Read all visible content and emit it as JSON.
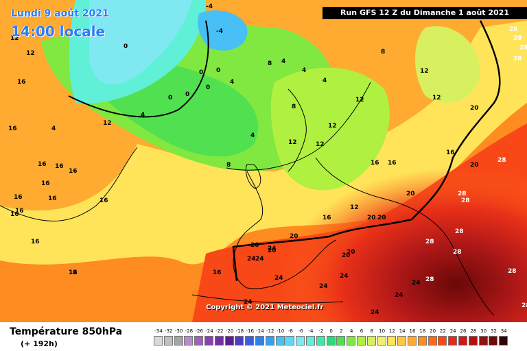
{
  "header": {
    "date": "Lundi 9 août 2021",
    "time": "14:00 locale",
    "run": "Run GFS 12 Z du Dimanche 1 août 2021"
  },
  "footer": {
    "title": "Température 850hPa",
    "lead": "(+ 192h)",
    "copyright": "Copyright © 2021 Meteociel.fr"
  },
  "scale": {
    "labels": [
      "-34",
      "-32",
      "-30",
      "-28",
      "-26",
      "-24",
      "-22",
      "-20",
      "-18",
      "-16",
      "-14",
      "-12",
      "-10",
      "-8",
      "-6",
      "-4",
      "-2",
      "0",
      "2",
      "4",
      "6",
      "8",
      "10",
      "12",
      "14",
      "16",
      "18",
      "20",
      "22",
      "24",
      "26",
      "28",
      "30",
      "32",
      "34"
    ],
    "colors": [
      "#d9d9d9",
      "#c0c0c0",
      "#a5a5a5",
      "#b88ad0",
      "#a060c0",
      "#8a3fb0",
      "#7030a0",
      "#5a1f90",
      "#4a3fc0",
      "#3b5fd8",
      "#2f80e8",
      "#35a0f0",
      "#48c0f5",
      "#5fd8f8",
      "#80e8f0",
      "#60f0d8",
      "#40e8a8",
      "#30d878",
      "#50e050",
      "#80e840",
      "#b0f040",
      "#d8f060",
      "#f0f070",
      "#ffe45a",
      "#ffc840",
      "#ffaa30",
      "#ff8c20",
      "#ff6a1a",
      "#f84818",
      "#e82818",
      "#d01818",
      "#b01010",
      "#901010",
      "#700808",
      "#300404"
    ]
  },
  "map": {
    "iso_labels": [
      "0",
      "0",
      "0",
      "0",
      "0",
      "0",
      "-4",
      "-4",
      "4",
      "4",
      "4",
      "4",
      "4",
      "4",
      "4",
      "8",
      "8",
      "8",
      "8",
      "12",
      "12",
      "12",
      "12",
      "12",
      "12",
      "12",
      "12",
      "12",
      "12",
      "12",
      "16",
      "16",
      "16",
      "16",
      "16",
      "16",
      "16",
      "16",
      "16",
      "16",
      "16",
      "16",
      "16",
      "16",
      "16",
      "16",
      "16",
      "16",
      "20",
      "20",
      "20",
      "20",
      "20",
      "20",
      "20",
      "20",
      "20",
      "20",
      "24",
      "24",
      "24",
      "24",
      "24",
      "24",
      "24",
      "24",
      "24",
      "24",
      "28",
      "28",
      "28",
      "28",
      "28",
      "28",
      "28",
      "28",
      "28",
      "28",
      "28",
      "28",
      "28"
    ]
  }
}
